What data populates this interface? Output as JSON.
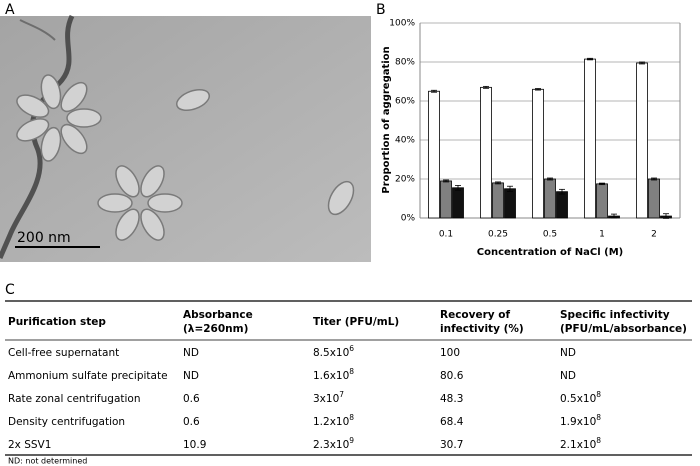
{
  "panels": {
    "a": "A",
    "b": "B",
    "c": "C"
  },
  "image": {
    "scale_bar": "200 nm"
  },
  "chart_data": {
    "type": "bar",
    "categories": [
      "0.1",
      "0.25",
      "0.5",
      "1",
      "2"
    ],
    "series": [
      {
        "color": "#ffffff",
        "values": [
          65,
          67,
          66,
          81.5,
          79.5
        ],
        "errors": [
          0.5,
          0.5,
          0.4,
          0.4,
          0.5
        ]
      },
      {
        "color": "#808080",
        "values": [
          19,
          18,
          20,
          17.5,
          20
        ],
        "errors": [
          0.5,
          0.5,
          0.5,
          0.4,
          0.5
        ]
      },
      {
        "color": "#111111",
        "values": [
          15.5,
          15,
          13.5,
          1,
          1
        ],
        "errors": [
          1.2,
          1.3,
          1.2,
          1,
          1.2
        ]
      }
    ],
    "ylim": [
      0,
      100
    ],
    "yticks": [
      {
        "value": 0,
        "label": "0%"
      },
      {
        "value": 20,
        "label": "20%"
      },
      {
        "value": 40,
        "label": "40%"
      },
      {
        "value": 60,
        "label": "60%"
      },
      {
        "value": 80,
        "label": "80%"
      },
      {
        "value": 100,
        "label": "100%"
      }
    ],
    "grid": true,
    "x_label": "Concentration of NaCl (M)",
    "y_label": "Proportion of aggregation"
  },
  "table": {
    "header": [
      [
        "Purification step"
      ],
      [
        "Absorbance",
        "(λ=260nm)"
      ],
      [
        "Titer (PFU/mL)"
      ],
      [
        "Recovery of",
        "infectivity (%)"
      ],
      [
        "Specific infectivity",
        "(PFU/mL/absorbance)"
      ]
    ],
    "rows": [
      [
        "Cell-free supernatant",
        "ND",
        {
          "base": "8.5x10",
          "exp": "6"
        },
        "100",
        "ND"
      ],
      [
        "Ammonium sulfate precipitate",
        "ND",
        {
          "base": "1.6x10",
          "exp": "8"
        },
        "80.6",
        "ND"
      ],
      [
        "Rate zonal centrifugation",
        "0.6",
        {
          "base": "3x10",
          "exp": "7"
        },
        "48.3",
        {
          "base": "0.5x10",
          "exp": "8"
        }
      ],
      [
        "Density centrifugation",
        "0.6",
        {
          "base": "1.2x10",
          "exp": "8"
        },
        "68.4",
        {
          "base": "1.9x10",
          "exp": "8"
        }
      ],
      [
        "2x SSV1",
        "10.9",
        {
          "base": "2.3x10",
          "exp": "9"
        },
        "30.7",
        {
          "base": "2.1x10",
          "exp": "8"
        }
      ]
    ]
  },
  "footnote": "ND: not determined"
}
